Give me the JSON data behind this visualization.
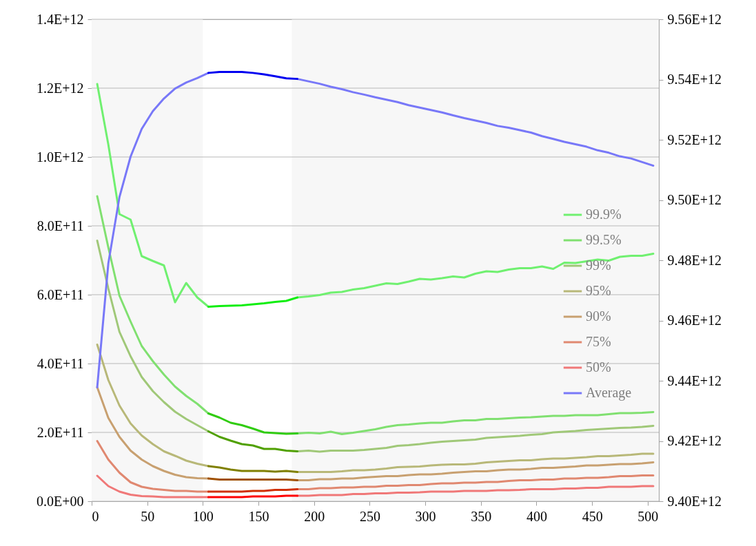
{
  "chart_data": {
    "type": "line",
    "x": [
      5,
      15,
      25,
      35,
      45,
      55,
      65,
      75,
      85,
      95,
      105,
      115,
      125,
      135,
      145,
      155,
      165,
      175,
      185,
      195,
      205,
      215,
      225,
      235,
      245,
      255,
      265,
      275,
      285,
      295,
      305,
      315,
      325,
      335,
      345,
      355,
      365,
      375,
      385,
      395,
      405,
      415,
      425,
      435,
      445,
      455,
      465,
      475,
      485,
      495,
      505
    ],
    "xlim": [
      0,
      510
    ],
    "xticks": [
      0,
      50,
      100,
      150,
      200,
      250,
      300,
      350,
      400,
      450,
      500
    ],
    "ylim": [
      0,
      1400000000000.0
    ],
    "yticks": [
      {
        "value": 0,
        "label": "0.0E+00"
      },
      {
        "value": 200000000000.0,
        "label": "2.0E+11"
      },
      {
        "value": 400000000000.0,
        "label": "4.0E+11"
      },
      {
        "value": 600000000000.0,
        "label": "6.0E+11"
      },
      {
        "value": 800000000000.0,
        "label": "8.0E+11"
      },
      {
        "value": 1000000000000.0,
        "label": "1.0E+12"
      },
      {
        "value": 1200000000000.0,
        "label": "1.2E+12"
      },
      {
        "value": 1400000000000.0,
        "label": "1.4E+12"
      }
    ],
    "y2lim": [
      9400000000000.0,
      9560000000000.0
    ],
    "y2ticks": [
      {
        "value": 9400000000000.0,
        "label": "9.40E+12"
      },
      {
        "value": 9420000000000.0,
        "label": "9.42E+12"
      },
      {
        "value": 9440000000000.0,
        "label": "9.44E+12"
      },
      {
        "value": 9460000000000.0,
        "label": "9.46E+12"
      },
      {
        "value": 9480000000000.0,
        "label": "9.48E+12"
      },
      {
        "value": 9500000000000.0,
        "label": "9.50E+12"
      },
      {
        "value": 9520000000000.0,
        "label": "9.52E+12"
      },
      {
        "value": 9540000000000.0,
        "label": "9.54E+12"
      },
      {
        "value": 9560000000000.0,
        "label": "9.56E+12"
      }
    ],
    "grid": "y",
    "legend": "right",
    "line_style": "solid",
    "bands": [
      {
        "axis": "x",
        "from": 0,
        "to": 100,
        "color": "#f7f7f7"
      },
      {
        "axis": "x",
        "from": 180,
        "to": 510,
        "color": "#f7f7f7"
      }
    ],
    "series": [
      {
        "name": "99.9%",
        "color": "#70f070",
        "values": [
          1212000000000.0,
          1036000000000.0,
          834000000000.0,
          818000000000.0,
          712000000000.0,
          698000000000.0,
          685000000000.0,
          578000000000.0,
          634000000000.0,
          592000000000.0,
          565000000000.0,
          null,
          null,
          null,
          null,
          null,
          null,
          null,
          592000000000.0,
          595000000000.0,
          599000000000.0,
          606000000000.0,
          608000000000.0,
          615000000000.0,
          619000000000.0,
          626000000000.0,
          633000000000.0,
          631000000000.0,
          638000000000.0,
          646000000000.0,
          644000000000.0,
          648000000000.0,
          653000000000.0,
          650000000000.0,
          661000000000.0,
          668000000000.0,
          666000000000.0,
          673000000000.0,
          677000000000.0,
          677000000000.0,
          682000000000.0,
          675000000000.0,
          693000000000.0,
          692000000000.0,
          697000000000.0,
          702000000000.0,
          699000000000.0,
          710000000000.0,
          713000000000.0,
          713000000000.0,
          719000000000.0
        ]
      },
      {
        "name": "99.5%",
        "color": "#80e070",
        "values": [
          886000000000.0,
          737000000000.0,
          597000000000.0,
          522000000000.0,
          451000000000.0,
          407000000000.0,
          368000000000.0,
          333000000000.0,
          306000000000.0,
          283000000000.0,
          255000000000.0,
          null,
          null,
          null,
          null,
          null,
          null,
          null,
          197000000000.0,
          199000000000.0,
          197000000000.0,
          202000000000.0,
          195000000000.0,
          199000000000.0,
          204000000000.0,
          209000000000.0,
          216000000000.0,
          221000000000.0,
          223000000000.0,
          226000000000.0,
          228000000000.0,
          228000000000.0,
          232000000000.0,
          235000000000.0,
          235000000000.0,
          239000000000.0,
          239000000000.0,
          241000000000.0,
          243000000000.0,
          244000000000.0,
          246000000000.0,
          248000000000.0,
          248000000000.0,
          250000000000.0,
          250000000000.0,
          250000000000.0,
          253000000000.0,
          256000000000.0,
          256000000000.0,
          257000000000.0,
          259000000000.0
        ]
      },
      {
        "name": "99%",
        "color": "#a0c878",
        "values": [
          757000000000.0,
          618000000000.0,
          492000000000.0,
          421000000000.0,
          361000000000.0,
          320000000000.0,
          288000000000.0,
          260000000000.0,
          239000000000.0,
          221000000000.0,
          203000000000.0,
          null,
          null,
          null,
          null,
          null,
          null,
          null,
          145000000000.0,
          147000000000.0,
          144000000000.0,
          147000000000.0,
          147000000000.0,
          147000000000.0,
          149000000000.0,
          152000000000.0,
          155000000000.0,
          161000000000.0,
          163000000000.0,
          166000000000.0,
          170000000000.0,
          173000000000.0,
          175000000000.0,
          177000000000.0,
          179000000000.0,
          184000000000.0,
          186000000000.0,
          188000000000.0,
          190000000000.0,
          193000000000.0,
          195000000000.0,
          200000000000.0,
          202000000000.0,
          204000000000.0,
          207000000000.0,
          209000000000.0,
          211000000000.0,
          213000000000.0,
          214000000000.0,
          216000000000.0,
          219000000000.0
        ]
      },
      {
        "name": "95%",
        "color": "#b8b878",
        "values": [
          455000000000.0,
          352000000000.0,
          278000000000.0,
          226000000000.0,
          191000000000.0,
          166000000000.0,
          145000000000.0,
          132000000000.0,
          118000000000.0,
          109000000000.0,
          102000000000.0,
          null,
          null,
          null,
          null,
          null,
          null,
          null,
          85000000000.0,
          85000000000.0,
          85000000000.0,
          85000000000.0,
          87000000000.0,
          90000000000.0,
          90000000000.0,
          92000000000.0,
          95000000000.0,
          99000000000.0,
          100000000000.0,
          101000000000.0,
          104000000000.0,
          106000000000.0,
          107000000000.0,
          107000000000.0,
          109000000000.0,
          113000000000.0,
          115000000000.0,
          117000000000.0,
          119000000000.0,
          119000000000.0,
          122000000000.0,
          124000000000.0,
          124000000000.0,
          126000000000.0,
          128000000000.0,
          131000000000.0,
          131000000000.0,
          133000000000.0,
          135000000000.0,
          138000000000.0,
          138000000000.0
        ]
      },
      {
        "name": "90%",
        "color": "#c8a070",
        "values": [
          331000000000.0,
          242000000000.0,
          187000000000.0,
          147000000000.0,
          121000000000.0,
          102000000000.0,
          88000000000.0,
          77000000000.0,
          70000000000.0,
          67000000000.0,
          66000000000.0,
          null,
          null,
          null,
          null,
          null,
          null,
          null,
          61000000000.0,
          61000000000.0,
          64000000000.0,
          64000000000.0,
          66000000000.0,
          66000000000.0,
          69000000000.0,
          71000000000.0,
          73000000000.0,
          73000000000.0,
          76000000000.0,
          78000000000.0,
          78000000000.0,
          80000000000.0,
          83000000000.0,
          85000000000.0,
          87000000000.0,
          87000000000.0,
          90000000000.0,
          92000000000.0,
          92000000000.0,
          94000000000.0,
          97000000000.0,
          97000000000.0,
          99000000000.0,
          101000000000.0,
          104000000000.0,
          104000000000.0,
          106000000000.0,
          108000000000.0,
          108000000000.0,
          110000000000.0,
          113000000000.0
        ]
      },
      {
        "name": "75%",
        "color": "#e08870",
        "values": [
          175000000000.0,
          121000000000.0,
          83000000000.0,
          55000000000.0,
          42000000000.0,
          36000000000.0,
          33000000000.0,
          30000000000.0,
          30000000000.0,
          28000000000.0,
          28000000000.0,
          null,
          null,
          null,
          null,
          null,
          null,
          null,
          35000000000.0,
          35000000000.0,
          38000000000.0,
          38000000000.0,
          40000000000.0,
          40000000000.0,
          42000000000.0,
          42000000000.0,
          45000000000.0,
          45000000000.0,
          47000000000.0,
          47000000000.0,
          50000000000.0,
          52000000000.0,
          52000000000.0,
          54000000000.0,
          54000000000.0,
          56000000000.0,
          56000000000.0,
          59000000000.0,
          61000000000.0,
          61000000000.0,
          63000000000.0,
          63000000000.0,
          66000000000.0,
          66000000000.0,
          68000000000.0,
          68000000000.0,
          70000000000.0,
          73000000000.0,
          73000000000.0,
          75000000000.0,
          75000000000.0
        ]
      },
      {
        "name": "50%",
        "color": "#f07878",
        "values": [
          74000000000.0,
          44000000000.0,
          28000000000.0,
          19000000000.0,
          15000000000.0,
          14000000000.0,
          12000000000.0,
          12000000000.0,
          12000000000.0,
          12000000000.0,
          12000000000.0,
          null,
          null,
          null,
          null,
          null,
          null,
          null,
          16000000000.0,
          16000000000.0,
          18000000000.0,
          18000000000.0,
          18000000000.0,
          21000000000.0,
          21000000000.0,
          23000000000.0,
          23000000000.0,
          25000000000.0,
          25000000000.0,
          26000000000.0,
          28000000000.0,
          28000000000.0,
          28000000000.0,
          30000000000.0,
          30000000000.0,
          30000000000.0,
          32000000000.0,
          32000000000.0,
          33000000000.0,
          35000000000.0,
          35000000000.0,
          35000000000.0,
          37000000000.0,
          37000000000.0,
          39000000000.0,
          39000000000.0,
          42000000000.0,
          42000000000.0,
          42000000000.0,
          44000000000.0,
          44000000000.0
        ]
      },
      {
        "name": "Average",
        "color": "#7878f8",
        "axis": "y2",
        "values": [
          9437800000000.0,
          9479000000000.0,
          9501000000000.0,
          9514400000000.0,
          9523600000000.0,
          9529500000000.0,
          9533700000000.0,
          9537000000000.0,
          9539000000000.0,
          9540500000000.0,
          9542200000000.0,
          null,
          null,
          null,
          null,
          null,
          null,
          null,
          9540200000000.0,
          9539400000000.0,
          9538600000000.0,
          9537600000000.0,
          9536800000000.0,
          9535800000000.0,
          9535000000000.0,
          9534100000000.0,
          9533300000000.0,
          9532500000000.0,
          9531500000000.0,
          9530700000000.0,
          9529900000000.0,
          9529100000000.0,
          9528100000000.0,
          9527200000000.0,
          9526400000000.0,
          9525600000000.0,
          9524600000000.0,
          9524000000000.0,
          9523200000000.0,
          9522400000000.0,
          9521200000000.0,
          9520300000000.0,
          9519300000000.0,
          9518500000000.0,
          9517700000000.0,
          9516500000000.0,
          9515700000000.0,
          9514500000000.0,
          9513800000000.0,
          9512600000000.0,
          9511400000000.0
        ]
      },
      {
        "color": "#10ee10",
        "x": [
          105,
          115,
          125,
          135,
          145,
          155,
          165,
          175,
          185
        ],
        "values": [
          565000000000.0,
          567000000000.0,
          568000000000.0,
          569000000000.0,
          572000000000.0,
          575000000000.0,
          579000000000.0,
          582000000000.0,
          592000000000.0
        ]
      },
      {
        "color": "#30cc10",
        "x": [
          105,
          115,
          125,
          135,
          145,
          155,
          165,
          175,
          185
        ],
        "values": [
          255000000000.0,
          243000000000.0,
          228000000000.0,
          221000000000.0,
          211000000000.0,
          200000000000.0,
          198000000000.0,
          196000000000.0,
          197000000000.0
        ]
      },
      {
        "color": "#50a000",
        "x": [
          105,
          115,
          125,
          135,
          145,
          155,
          165,
          175,
          185
        ],
        "values": [
          203000000000.0,
          187000000000.0,
          176000000000.0,
          166000000000.0,
          162000000000.0,
          152000000000.0,
          152000000000.0,
          147000000000.0,
          145000000000.0
        ]
      },
      {
        "color": "#808000",
        "x": [
          105,
          115,
          125,
          135,
          145,
          155,
          165,
          175,
          185
        ],
        "values": [
          102000000000.0,
          98000000000.0,
          92000000000.0,
          88000000000.0,
          88000000000.0,
          88000000000.0,
          86000000000.0,
          88000000000.0,
          85000000000.0
        ]
      },
      {
        "color": "#a05000",
        "x": [
          105,
          115,
          125,
          135,
          145,
          155,
          165,
          175,
          185
        ],
        "values": [
          66000000000.0,
          63000000000.0,
          63000000000.0,
          63000000000.0,
          63000000000.0,
          63000000000.0,
          63000000000.0,
          63000000000.0,
          61000000000.0
        ]
      },
      {
        "color": "#d03000",
        "x": [
          105,
          115,
          125,
          135,
          145,
          155,
          165,
          175,
          185
        ],
        "values": [
          28000000000.0,
          28000000000.0,
          28000000000.0,
          28000000000.0,
          30000000000.0,
          30000000000.0,
          33000000000.0,
          33000000000.0,
          35000000000.0
        ]
      },
      {
        "color": "#ff0000",
        "x": [
          105,
          115,
          125,
          135,
          145,
          155,
          165,
          175,
          185
        ],
        "values": [
          12000000000.0,
          12000000000.0,
          12000000000.0,
          12000000000.0,
          14000000000.0,
          14000000000.0,
          14000000000.0,
          16000000000.0,
          16000000000.0
        ]
      },
      {
        "color": "#0000f0",
        "axis": "y2",
        "x": [
          105,
          115,
          125,
          135,
          145,
          155,
          165,
          175,
          185
        ],
        "values": [
          9542200000000.0,
          9542500000000.0,
          9542500000000.0,
          9542500000000.0,
          9542200000000.0,
          9541700000000.0,
          9541100000000.0,
          9540400000000.0,
          9540200000000.0
        ]
      }
    ]
  }
}
